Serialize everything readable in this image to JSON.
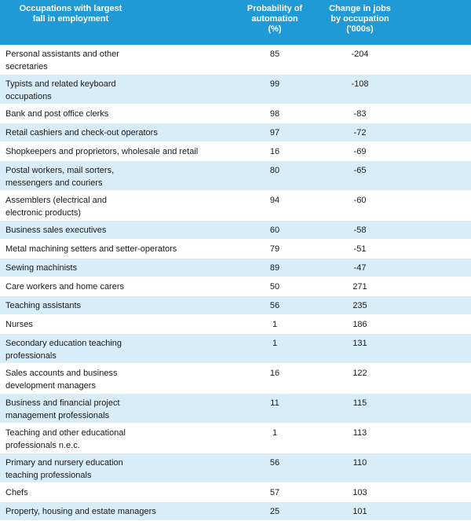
{
  "table": {
    "header": [
      "Occupations with largest\nfall in employment",
      "Probability of\nautomation\n(%)",
      "Change in jobs\nby occupation\n('000s)"
    ],
    "rows": [
      [
        "Personal assistants and other\nsecretaries",
        85,
        -204
      ],
      [
        "Typists and related keyboard\noccupations",
        99,
        -108
      ],
      [
        "Bank and post office clerks",
        98,
        -83
      ],
      [
        "Retail cashiers and check-out operators",
        97,
        -72
      ],
      [
        "Shopkeepers and proprietors, wholesale and retail",
        16,
        -69
      ],
      [
        "Postal workers, mail sorters,\nmessengers and couriers",
        80,
        -65
      ],
      [
        "Assemblers (electrical and\nelectronic products)",
        94,
        -60
      ],
      [
        "Business sales executives",
        60,
        -58
      ],
      [
        "Metal machining setters and setter-operators",
        79,
        -51
      ],
      [
        "Sewing machinists",
        89,
        -47
      ],
      [
        "Care workers and home carers",
        50,
        271
      ],
      [
        "Teaching assistants",
        56,
        235
      ],
      [
        "Nurses",
        1,
        186
      ],
      [
        "Secondary education teaching\nprofessionals",
        1,
        131
      ],
      [
        "Sales accounts and business\ndevelopment managers",
        16,
        122
      ],
      [
        "Business and financial project\nmanagement professionals",
        11,
        115
      ],
      [
        "Teaching and other educational\nprofessionals n.e.c.",
        1,
        113
      ],
      [
        "Primary and nursery education\nteaching professionals",
        56,
        110
      ],
      [
        "Chefs",
        57,
        103
      ],
      [
        "Property, housing and estate managers",
        25,
        101
      ]
    ]
  }
}
